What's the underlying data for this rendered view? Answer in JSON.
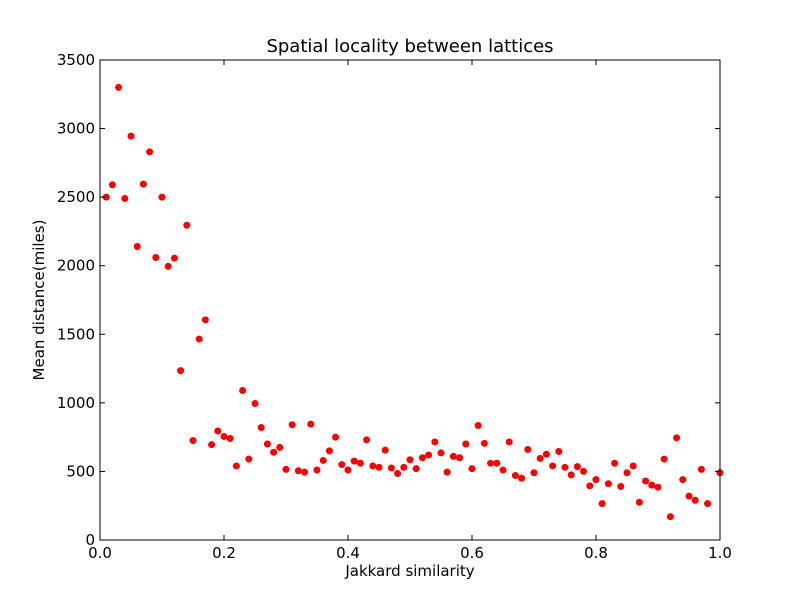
{
  "chart_data": {
    "type": "scatter",
    "title": "Spatial locality between lattices",
    "xlabel": "Jakkard similarity",
    "ylabel": "Mean distance(miles)",
    "xlim": [
      0,
      1.0
    ],
    "ylim": [
      0,
      3500
    ],
    "x_ticks": [
      "0.0",
      "0.2",
      "0.4",
      "0.6",
      "0.8",
      "1.0"
    ],
    "y_ticks": [
      "0",
      "500",
      "1000",
      "1500",
      "2000",
      "2500",
      "3000",
      "3500"
    ],
    "grid": false,
    "series": [
      {
        "color": "#ff0000",
        "points": [
          [
            0.01,
            2500
          ],
          [
            0.02,
            2590
          ],
          [
            0.03,
            3300
          ],
          [
            0.04,
            2490
          ],
          [
            0.05,
            2945
          ],
          [
            0.06,
            2140
          ],
          [
            0.07,
            2595
          ],
          [
            0.08,
            2830
          ],
          [
            0.09,
            2060
          ],
          [
            0.1,
            2500
          ],
          [
            0.11,
            1995
          ],
          [
            0.12,
            2055
          ],
          [
            0.13,
            1235
          ],
          [
            0.14,
            2295
          ],
          [
            0.15,
            725
          ],
          [
            0.16,
            1465
          ],
          [
            0.17,
            1605
          ],
          [
            0.18,
            695
          ],
          [
            0.19,
            795
          ],
          [
            0.2,
            755
          ],
          [
            0.21,
            740
          ],
          [
            0.22,
            540
          ],
          [
            0.23,
            1090
          ],
          [
            0.24,
            590
          ],
          [
            0.25,
            995
          ],
          [
            0.26,
            820
          ],
          [
            0.27,
            700
          ],
          [
            0.28,
            640
          ],
          [
            0.29,
            675
          ],
          [
            0.3,
            515
          ],
          [
            0.31,
            840
          ],
          [
            0.32,
            505
          ],
          [
            0.33,
            495
          ],
          [
            0.34,
            845
          ],
          [
            0.35,
            510
          ],
          [
            0.36,
            580
          ],
          [
            0.37,
            650
          ],
          [
            0.38,
            750
          ],
          [
            0.39,
            550
          ],
          [
            0.4,
            510
          ],
          [
            0.41,
            575
          ],
          [
            0.42,
            560
          ],
          [
            0.43,
            730
          ],
          [
            0.44,
            540
          ],
          [
            0.45,
            530
          ],
          [
            0.46,
            655
          ],
          [
            0.47,
            525
          ],
          [
            0.48,
            485
          ],
          [
            0.49,
            530
          ],
          [
            0.5,
            585
          ],
          [
            0.51,
            520
          ],
          [
            0.52,
            600
          ],
          [
            0.53,
            620
          ],
          [
            0.54,
            715
          ],
          [
            0.55,
            635
          ],
          [
            0.56,
            495
          ],
          [
            0.57,
            610
          ],
          [
            0.58,
            600
          ],
          [
            0.59,
            700
          ],
          [
            0.6,
            520
          ],
          [
            0.61,
            835
          ],
          [
            0.62,
            705
          ],
          [
            0.63,
            560
          ],
          [
            0.64,
            560
          ],
          [
            0.65,
            510
          ],
          [
            0.66,
            715
          ],
          [
            0.67,
            470
          ],
          [
            0.68,
            450
          ],
          [
            0.69,
            660
          ],
          [
            0.7,
            490
          ],
          [
            0.71,
            595
          ],
          [
            0.72,
            625
          ],
          [
            0.73,
            540
          ],
          [
            0.74,
            645
          ],
          [
            0.75,
            530
          ],
          [
            0.76,
            475
          ],
          [
            0.77,
            535
          ],
          [
            0.78,
            500
          ],
          [
            0.79,
            395
          ],
          [
            0.8,
            440
          ],
          [
            0.81,
            265
          ],
          [
            0.82,
            410
          ],
          [
            0.83,
            560
          ],
          [
            0.84,
            390
          ],
          [
            0.85,
            490
          ],
          [
            0.86,
            540
          ],
          [
            0.87,
            275
          ],
          [
            0.88,
            430
          ],
          [
            0.89,
            400
          ],
          [
            0.9,
            385
          ],
          [
            0.91,
            590
          ],
          [
            0.92,
            170
          ],
          [
            0.93,
            745
          ],
          [
            0.94,
            440
          ],
          [
            0.95,
            320
          ],
          [
            0.96,
            290
          ],
          [
            0.97,
            515
          ],
          [
            0.98,
            265
          ],
          [
            1.0,
            490
          ]
        ]
      }
    ]
  }
}
